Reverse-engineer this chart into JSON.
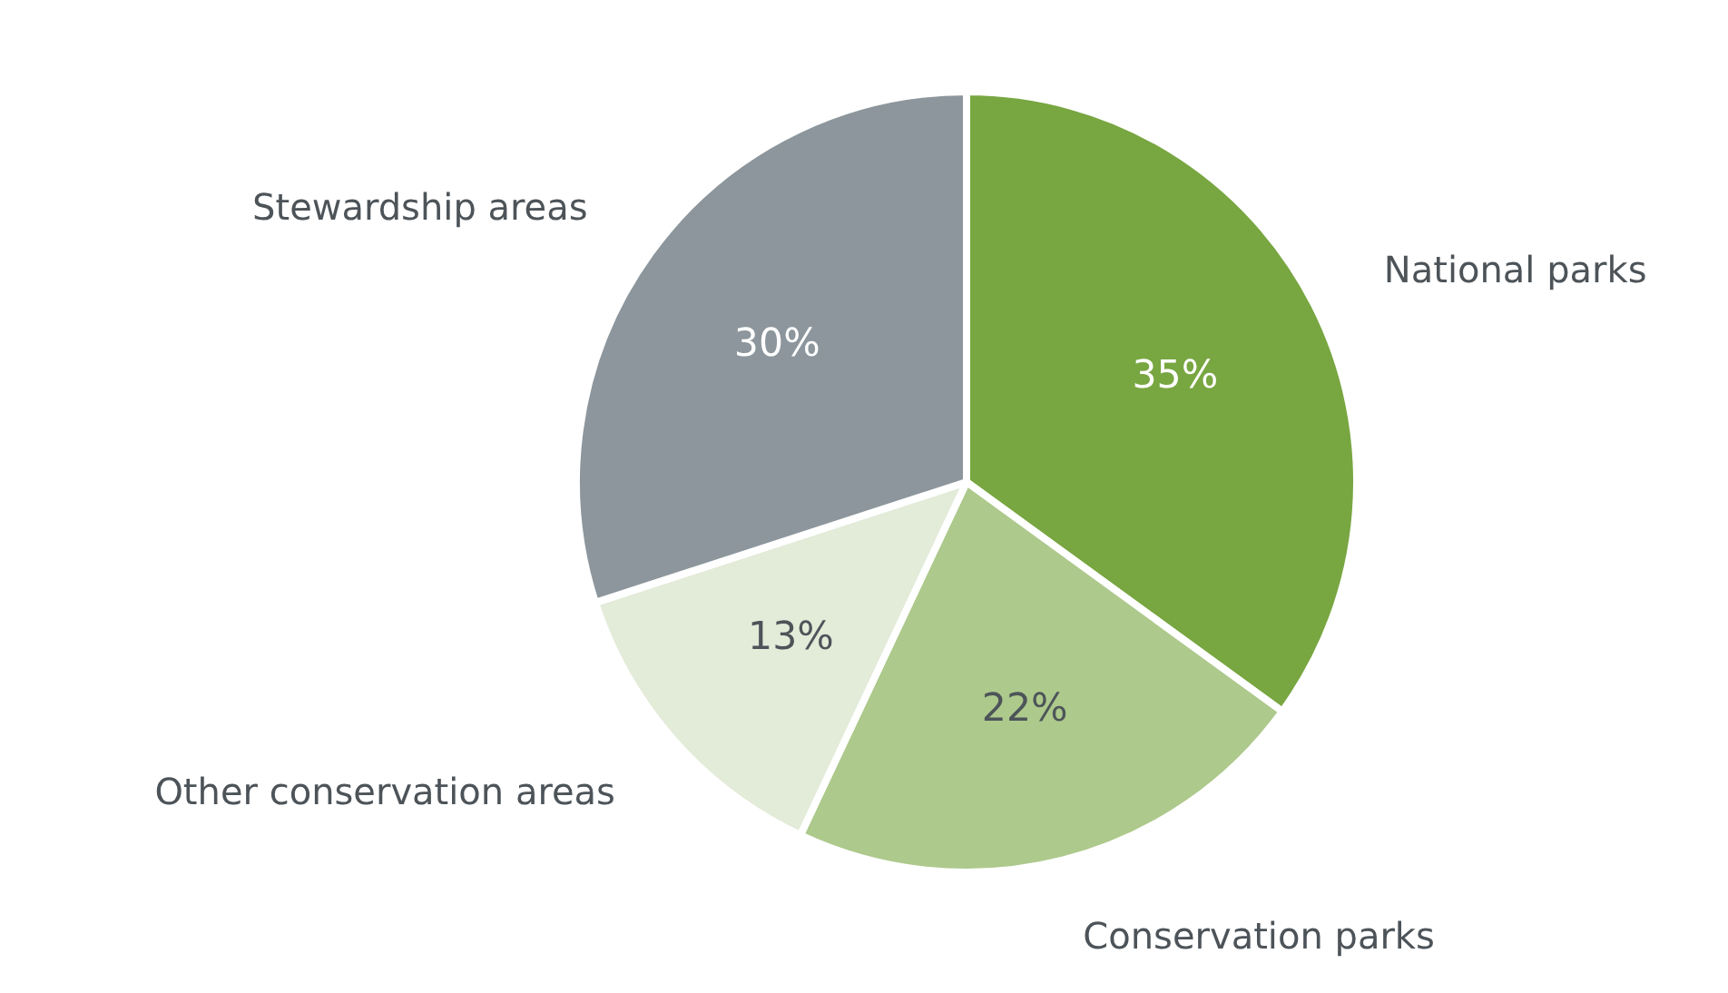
{
  "chart_data": {
    "type": "pie",
    "categories": [
      "National parks",
      "Conservation parks",
      "Other conservation areas",
      "Stewardship areas"
    ],
    "values": [
      35,
      22,
      13,
      30
    ],
    "colors": [
      "#78a641",
      "#adc98c",
      "#e3ebd9",
      "#8c969c"
    ],
    "value_labels": [
      "35%",
      "22%",
      "13%",
      "30%"
    ]
  }
}
